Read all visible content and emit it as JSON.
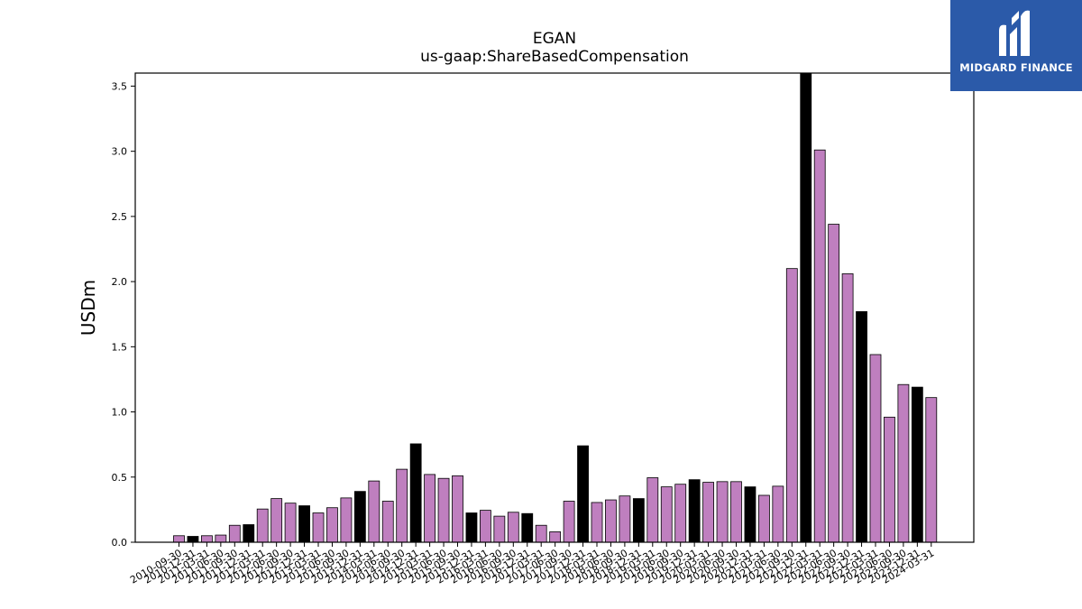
{
  "chart_data": {
    "type": "bar",
    "title": "EGAN",
    "subtitle": "us-gaap:ShareBasedCompensation",
    "xlabel": "",
    "ylabel": "USDm",
    "ylim": [
      0,
      3.6
    ],
    "yticks": [
      "0.0",
      "0.5",
      "1.0",
      "1.5",
      "2.0",
      "2.5",
      "3.0",
      "3.5"
    ],
    "grid": false,
    "colors": {
      "quarter": "#bf7fbf",
      "annual": "#000000",
      "edge": "#000000"
    },
    "categories": [
      "2010-09-30",
      "2010-12-31",
      "2011-03-31",
      "2011-06-30",
      "2011-09-30",
      "2011-12-31",
      "2012-03-31",
      "2012-06-30",
      "2012-09-30",
      "2012-12-31",
      "2013-03-31",
      "2013-06-30",
      "2013-09-30",
      "2013-12-31",
      "2014-03-31",
      "2014-06-30",
      "2014-09-30",
      "2014-12-31",
      "2015-03-31",
      "2015-06-30",
      "2015-09-30",
      "2015-12-31",
      "2016-03-31",
      "2016-06-30",
      "2016-09-30",
      "2016-12-31",
      "2017-03-31",
      "2017-06-30",
      "2017-09-30",
      "2017-12-31",
      "2018-03-31",
      "2018-06-30",
      "2018-09-30",
      "2018-12-31",
      "2019-03-31",
      "2019-06-30",
      "2019-09-30",
      "2019-12-31",
      "2020-03-31",
      "2020-06-30",
      "2020-09-30",
      "2020-12-31",
      "2021-03-31",
      "2021-06-30",
      "2021-09-30",
      "2021-12-31",
      "2022-03-31",
      "2022-06-30",
      "2022-09-30",
      "2022-12-31",
      "2023-03-31",
      "2023-06-30",
      "2023-09-30",
      "2023-12-31",
      "2024-03-31"
    ],
    "values": [
      0.05,
      0.045,
      0.05,
      0.055,
      0.13,
      0.135,
      0.255,
      0.335,
      0.3,
      0.28,
      0.225,
      0.265,
      0.34,
      0.39,
      0.47,
      0.315,
      0.56,
      0.755,
      0.52,
      0.49,
      0.51,
      0.225,
      0.245,
      0.2,
      0.23,
      0.22,
      0.13,
      0.08,
      0.315,
      0.74,
      0.305,
      0.325,
      0.355,
      0.335,
      0.495,
      0.425,
      0.445,
      0.48,
      0.46,
      0.465,
      0.465,
      0.425,
      0.36,
      0.43,
      2.1,
      3.6,
      3.01,
      2.44,
      2.06,
      1.77,
      1.44,
      0.96,
      1.21,
      1.19,
      1.11
    ],
    "period_type": [
      "q",
      "a",
      "q",
      "q",
      "q",
      "a",
      "q",
      "q",
      "q",
      "a",
      "q",
      "q",
      "q",
      "a",
      "q",
      "q",
      "q",
      "a",
      "q",
      "q",
      "q",
      "a",
      "q",
      "q",
      "q",
      "a",
      "q",
      "q",
      "q",
      "a",
      "q",
      "q",
      "q",
      "a",
      "q",
      "q",
      "q",
      "a",
      "q",
      "q",
      "q",
      "a",
      "q",
      "q",
      "q",
      "a",
      "q",
      "q",
      "q",
      "a",
      "q",
      "q",
      "q",
      "a",
      "q"
    ]
  },
  "logo": {
    "text": "MIDGARD FINANCE",
    "icon": "midgard-logo-icon"
  }
}
